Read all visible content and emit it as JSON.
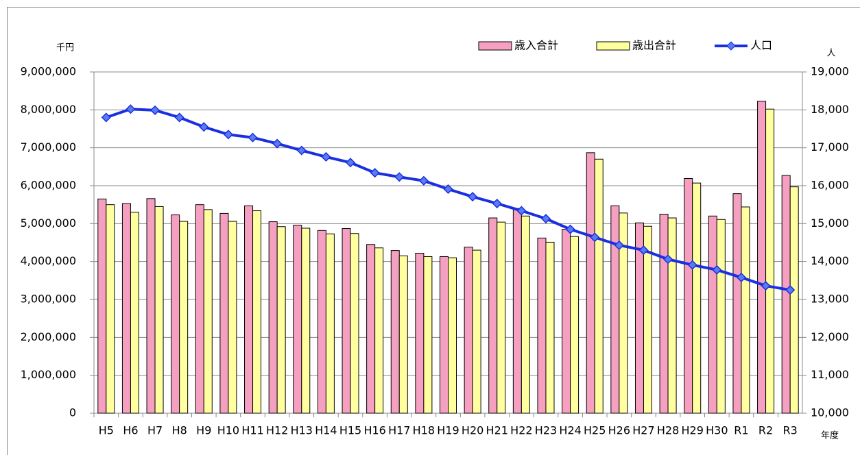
{
  "chart_data": {
    "type": "bar-line",
    "y_unit": "千円",
    "y2_unit": "人",
    "x_unit": "年度",
    "categories": [
      "H5",
      "H6",
      "H7",
      "H8",
      "H9",
      "H10",
      "H11",
      "H12",
      "H13",
      "H14",
      "H15",
      "H16",
      "H17",
      "H18",
      "H19",
      "H20",
      "H21",
      "H22",
      "H23",
      "H24",
      "H25",
      "H26",
      "H27",
      "H28",
      "H29",
      "H30",
      "R1",
      "R2",
      "R3"
    ],
    "series": [
      {
        "name": "歳入合計",
        "type": "bar",
        "color": "#f5a0c0",
        "values": [
          5650000,
          5530000,
          5660000,
          5230000,
          5500000,
          5270000,
          5470000,
          5050000,
          4960000,
          4820000,
          4870000,
          4450000,
          4290000,
          4220000,
          4130000,
          4380000,
          5150000,
          5400000,
          4620000,
          4850000,
          6870000,
          5470000,
          5020000,
          5250000,
          6190000,
          5200000,
          5790000,
          8230000,
          6270000
        ]
      },
      {
        "name": "歳出合計",
        "type": "bar",
        "color": "#ffffa0",
        "values": [
          5500000,
          5300000,
          5450000,
          5060000,
          5370000,
          5060000,
          5340000,
          4920000,
          4880000,
          4730000,
          4740000,
          4360000,
          4150000,
          4130000,
          4100000,
          4300000,
          5040000,
          5200000,
          4510000,
          4660000,
          6700000,
          5280000,
          4930000,
          5150000,
          6070000,
          5110000,
          5440000,
          8020000,
          5970000
        ]
      },
      {
        "name": "人口",
        "type": "line",
        "axis": "y2",
        "color": "#1a2fe0",
        "values": [
          17800,
          18020,
          17990,
          17800,
          17550,
          17350,
          17270,
          17110,
          16930,
          16760,
          16610,
          16340,
          16230,
          16130,
          15910,
          15710,
          15530,
          15340,
          15130,
          14850,
          14640,
          14430,
          14300,
          14060,
          13910,
          13780,
          13580,
          13360,
          13250
        ]
      }
    ],
    "ylim": [
      0,
      9000000
    ],
    "yticks": [
      0,
      {
        "value": 1000000,
        "label": "1,000,000"
      },
      {
        "value": 2000000,
        "label": "2,000,000"
      },
      {
        "value": 3000000,
        "label": "3,000,000"
      },
      {
        "value": 4000000,
        "label": "4,000,000"
      },
      {
        "value": 5000000,
        "label": "5,000,000"
      },
      {
        "value": 6000000,
        "label": "6,000,000"
      },
      {
        "value": 7000000,
        "label": "7,000,000"
      },
      {
        "value": 8000000,
        "label": "8,000,000"
      },
      {
        "value": 9000000,
        "label": "9,000,000"
      }
    ],
    "y2lim": [
      10000,
      19000
    ],
    "y2ticks": [
      {
        "value": 10000,
        "label": "10,000"
      },
      {
        "value": 11000,
        "label": "11,000"
      },
      {
        "value": 12000,
        "label": "12,000"
      },
      {
        "value": 13000,
        "label": "13,000"
      },
      {
        "value": 14000,
        "label": "14,000"
      },
      {
        "value": 15000,
        "label": "15,000"
      },
      {
        "value": 16000,
        "label": "16,000"
      },
      {
        "value": 17000,
        "label": "17,000"
      },
      {
        "value": 18000,
        "label": "18,000"
      },
      {
        "value": 19000,
        "label": "19,000"
      }
    ],
    "grid": true
  }
}
